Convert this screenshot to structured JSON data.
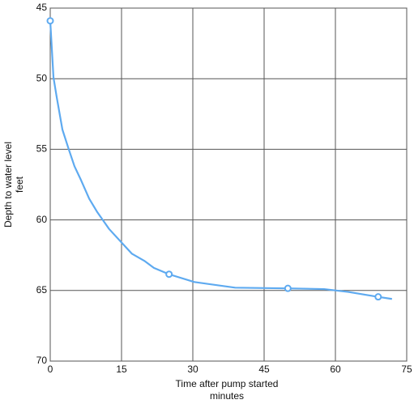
{
  "chart_data": {
    "type": "line",
    "x_label": [
      "Time after pump started",
      "minutes"
    ],
    "y_label": [
      "Depth to water level",
      "feet"
    ],
    "xlim": [
      0,
      75
    ],
    "xticks": [
      0,
      15,
      30,
      45,
      60,
      75
    ],
    "ylim": [
      45,
      70
    ],
    "yticks": [
      45,
      50,
      55,
      60,
      65,
      70
    ],
    "y_reversed": true,
    "grid": true,
    "series": [
      {
        "color": "#5eaaf0",
        "x": [
          0,
          0.34,
          0.68,
          1.36,
          2.56,
          3.9,
          5.1,
          6.5,
          8.2,
          9.9,
          12.4,
          15,
          17.2,
          19.8,
          21.8,
          25,
          30.3,
          38.9,
          50,
          57.6,
          62.7,
          69,
          71.9
        ],
        "values": [
          45.9,
          47.9,
          49.9,
          51.3,
          53.6,
          55.0,
          56.2,
          57.2,
          58.5,
          59.45,
          60.65,
          61.6,
          62.4,
          62.9,
          63.4,
          63.85,
          64.4,
          64.8,
          64.85,
          64.9,
          65.1,
          65.45,
          65.6
        ]
      }
    ],
    "markers": {
      "color": "#5eaaf0",
      "x": [
        0,
        25,
        50,
        69
      ],
      "values": [
        45.9,
        63.85,
        64.85,
        65.45
      ]
    }
  }
}
